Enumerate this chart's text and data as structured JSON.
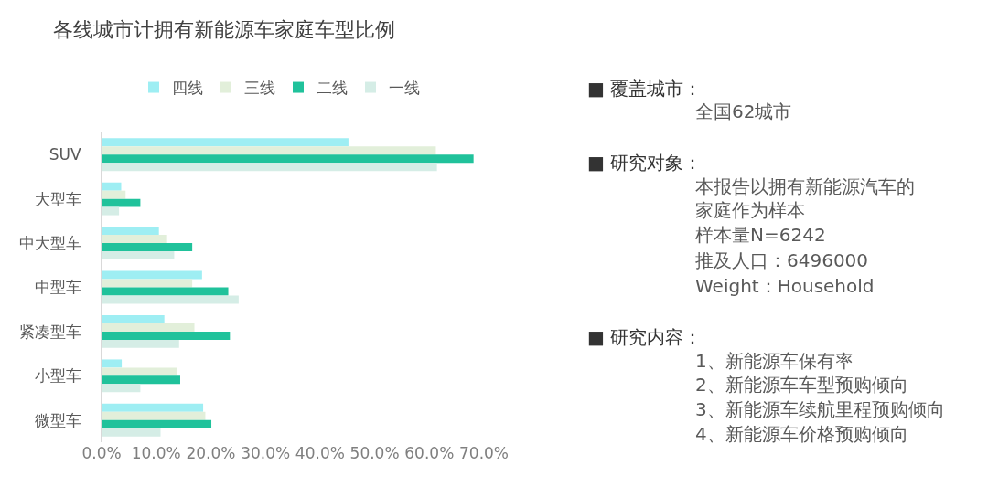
{
  "chart_data": {
    "type": "bar",
    "orientation": "horizontal",
    "title": "各线城市计拥有新能源车家庭车型比例",
    "categories": [
      "SUV",
      "大型车",
      "中大型车",
      "中型车",
      "紧凑型车",
      "小型车",
      "微型车"
    ],
    "series": [
      {
        "name": "四线",
        "color": "#9eeef3",
        "values": [
          45.2,
          3.6,
          10.5,
          18.4,
          11.5,
          3.7,
          18.6
        ]
      },
      {
        "name": "三线",
        "color": "#e2efda",
        "values": [
          61.2,
          4.4,
          12.0,
          16.6,
          17.0,
          13.8,
          19.0
        ]
      },
      {
        "name": "二线",
        "color": "#20c29b",
        "values": [
          68.1,
          7.1,
          16.6,
          23.2,
          23.5,
          14.4,
          20.1
        ]
      },
      {
        "name": "一线",
        "color": "#d5ede6",
        "values": [
          61.4,
          3.2,
          13.3,
          25.1,
          14.2,
          7.1,
          10.8
        ]
      }
    ],
    "xlim": [
      0,
      70
    ],
    "xticks": [
      {
        "value": 0,
        "label": "0.0%"
      },
      {
        "value": 10,
        "label": "10.0%"
      },
      {
        "value": 20,
        "label": "20.0%"
      },
      {
        "value": 30,
        "label": "30.0%"
      },
      {
        "value": 40,
        "label": "40.0%"
      },
      {
        "value": 50,
        "label": "50.0%"
      },
      {
        "value": 60,
        "label": "60.0%"
      },
      {
        "value": 70,
        "label": "70.0%"
      }
    ],
    "legend": "top",
    "annotations": [
      "■ 覆盖城市：",
      "全国62城市",
      "■ 研究对象：",
      "本报告以拥有新能源汽车的家庭作为样本",
      "样本量N=6242",
      "推及人口：6496000",
      "Weight：Household",
      "■ 研究内容：",
      "1、新能源车保有率",
      "2、新能源车车型预购倾向",
      "3、新能源车续航里程预购倾向",
      "4、新能源车价格预购倾向"
    ]
  }
}
